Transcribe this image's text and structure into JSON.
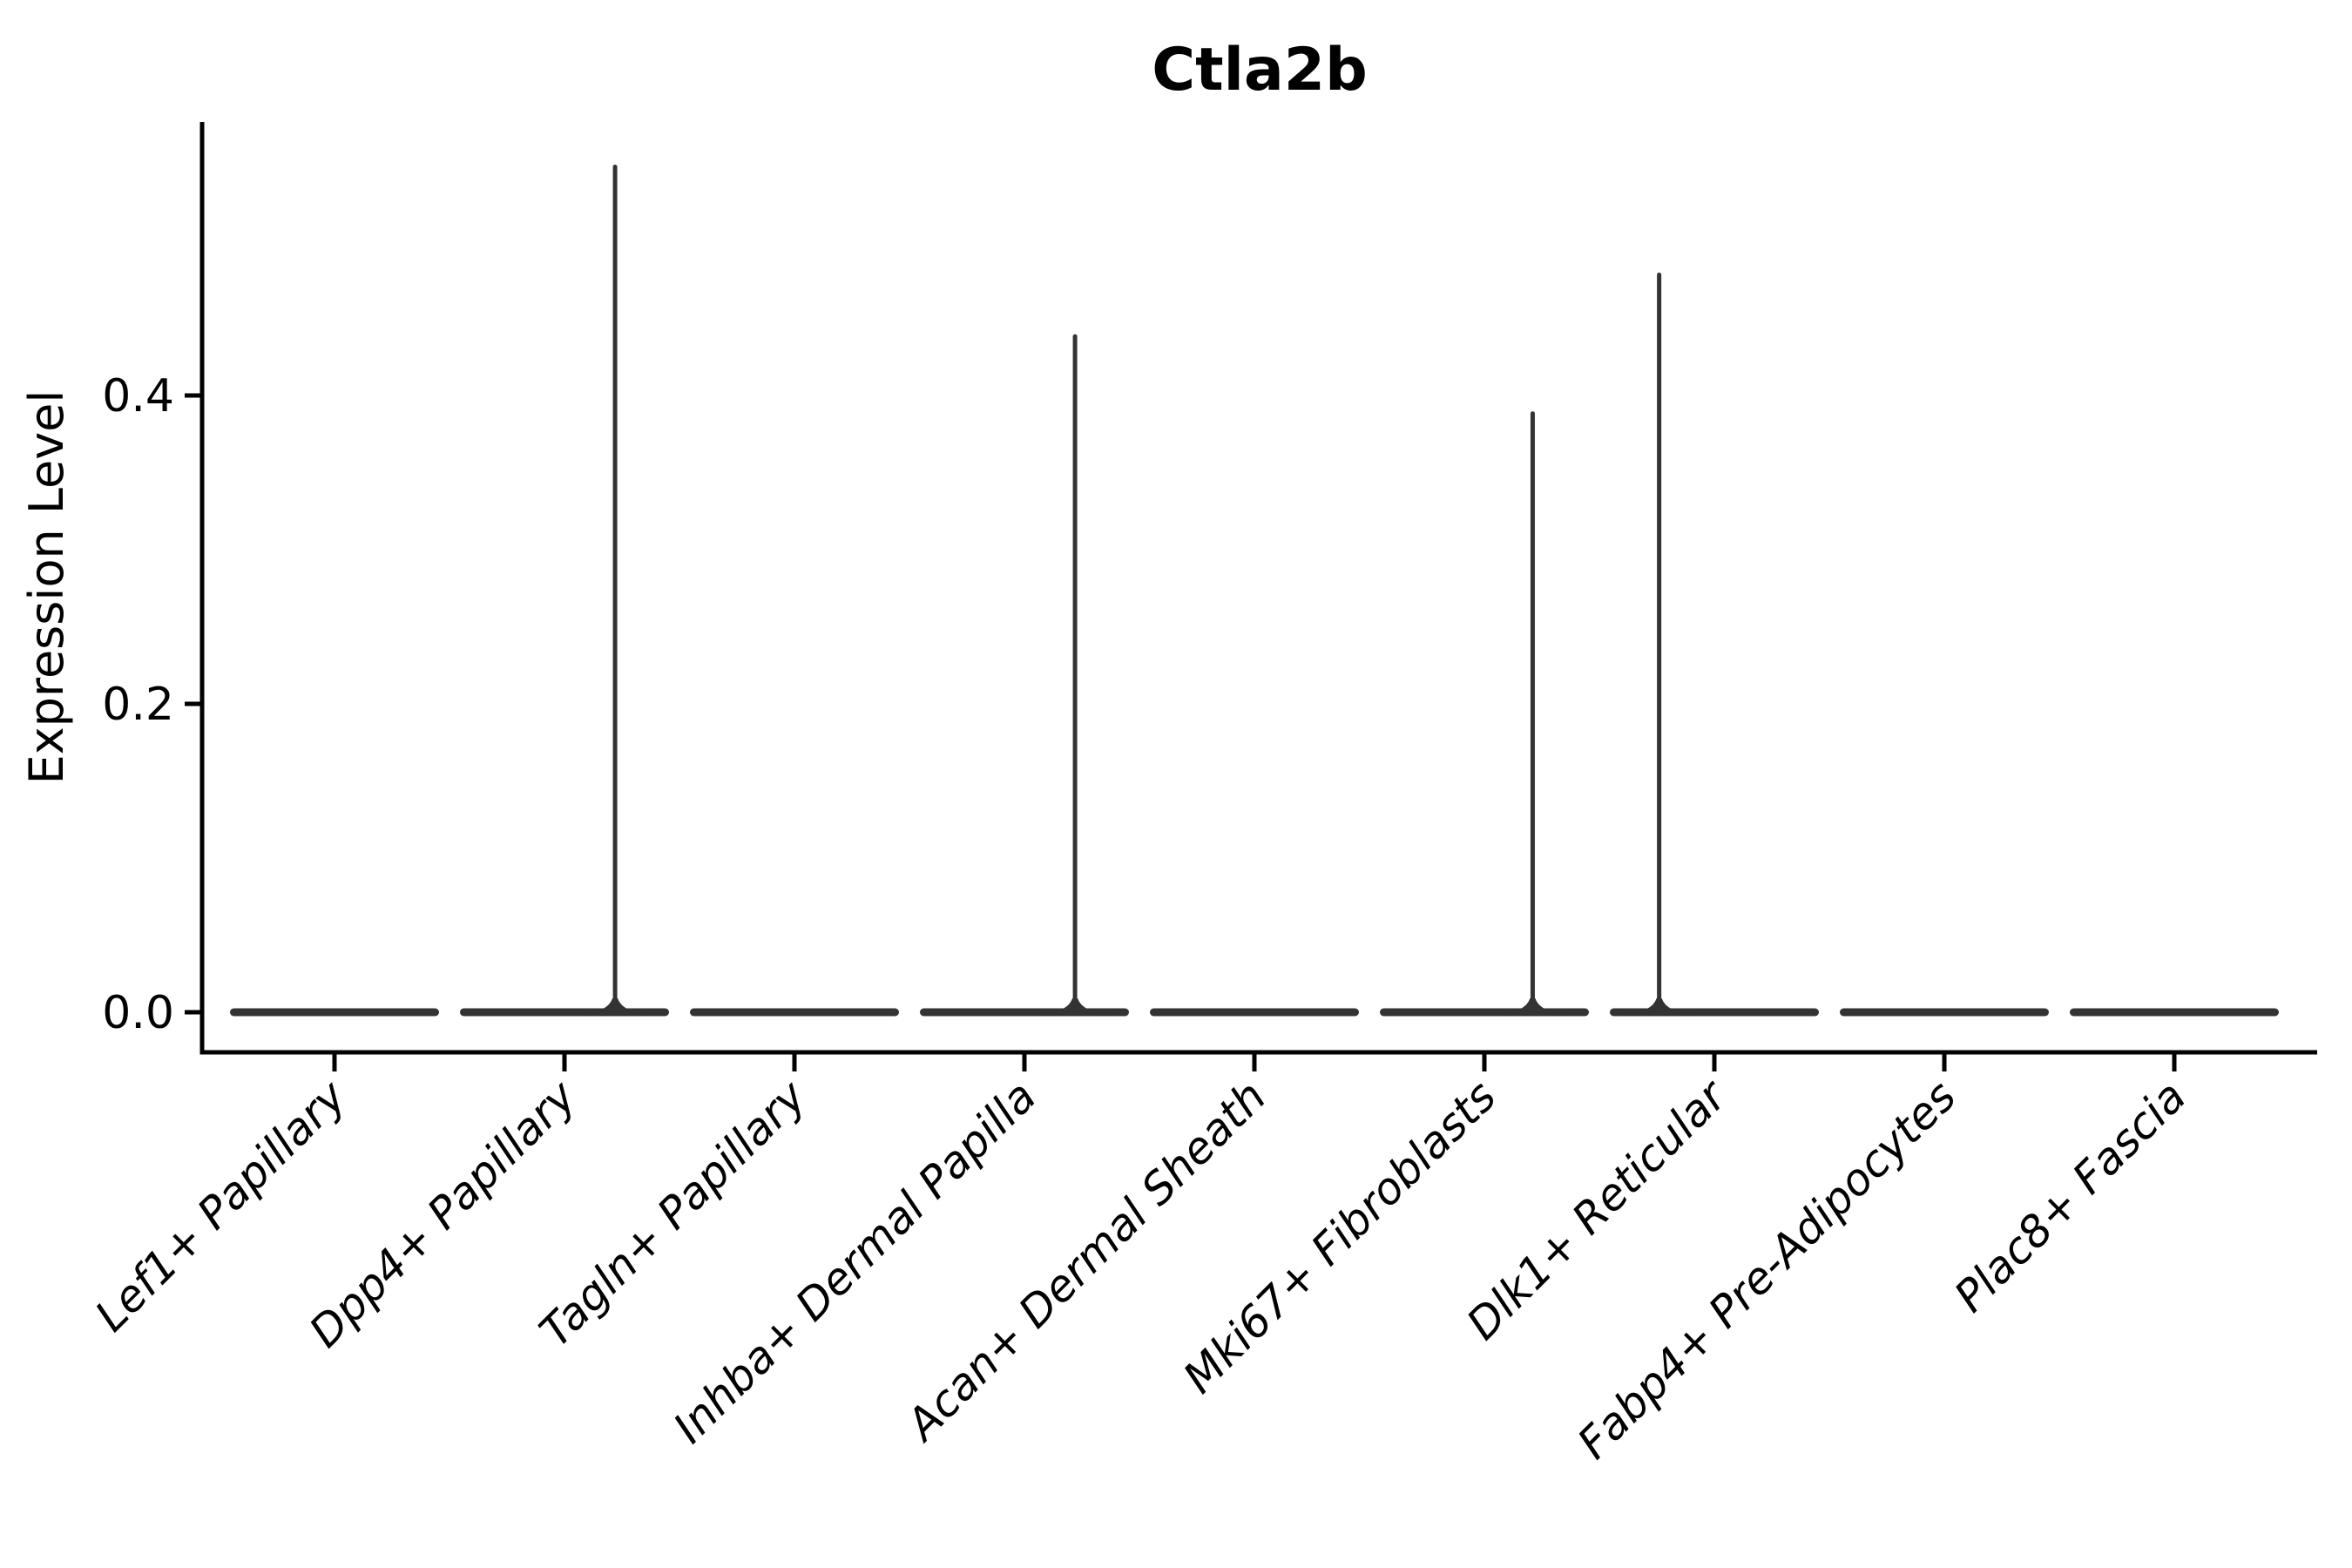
{
  "figure": {
    "title": "Ctla2b",
    "y_axis_label": "Expression Level"
  },
  "chart_data": {
    "type": "violin",
    "title": "Ctla2b",
    "xlabel": "",
    "ylabel": "Expression Level",
    "categories": [
      "Lef1+ Papillary",
      "Dpp4+ Papillary",
      "Tagln+ Papillary",
      "Inhba+ Dermal Papilla",
      "Acan+ Dermal Sheath",
      "Mki67+ Fibroblasts",
      "Dlk1+ Reticular",
      "Fabp4+ Pre-Adipocytes",
      "Plac8+ Fascia"
    ],
    "yticks": [
      {
        "value": 0.0,
        "label": "0.0"
      },
      {
        "value": 0.2,
        "label": "0.2"
      },
      {
        "value": 0.4,
        "label": "0.4"
      }
    ],
    "ylim": [
      0,
      0.58
    ],
    "grid": false,
    "legend": "none",
    "x_label_rotation_deg": 45,
    "violins": [
      {
        "category": "Lef1+ Papillary",
        "body_at": 0.0,
        "tail_max": 0.0,
        "tail_offset_frac": 0
      },
      {
        "category": "Dpp4+ Papillary",
        "body_at": 0.0,
        "tail_max": 0.55,
        "tail_offset_frac": 0.22
      },
      {
        "category": "Tagln+ Papillary",
        "body_at": 0.0,
        "tail_max": 0.0,
        "tail_offset_frac": 0
      },
      {
        "category": "Inhba+ Dermal Papilla",
        "body_at": 0.0,
        "tail_max": 0.44,
        "tail_offset_frac": 0.22
      },
      {
        "category": "Acan+ Dermal Sheath",
        "body_at": 0.0,
        "tail_max": 0.0,
        "tail_offset_frac": 0
      },
      {
        "category": "Mki67+ Fibroblasts",
        "body_at": 0.0,
        "tail_max": 0.39,
        "tail_offset_frac": 0.21
      },
      {
        "category": "Dlk1+ Reticular",
        "body_at": 0.0,
        "tail_max": 0.48,
        "tail_offset_frac": -0.24
      },
      {
        "category": "Fabp4+ Pre-Adipocytes",
        "body_at": 0.0,
        "tail_max": 0.0,
        "tail_offset_frac": 0
      },
      {
        "category": "Plac8+ Fascia",
        "body_at": 0.0,
        "tail_max": 0.0,
        "tail_offset_frac": 0
      }
    ],
    "colors": {
      "violin": "#333333",
      "axis": "#000000",
      "text": "#000000",
      "background": "#ffffff"
    }
  }
}
